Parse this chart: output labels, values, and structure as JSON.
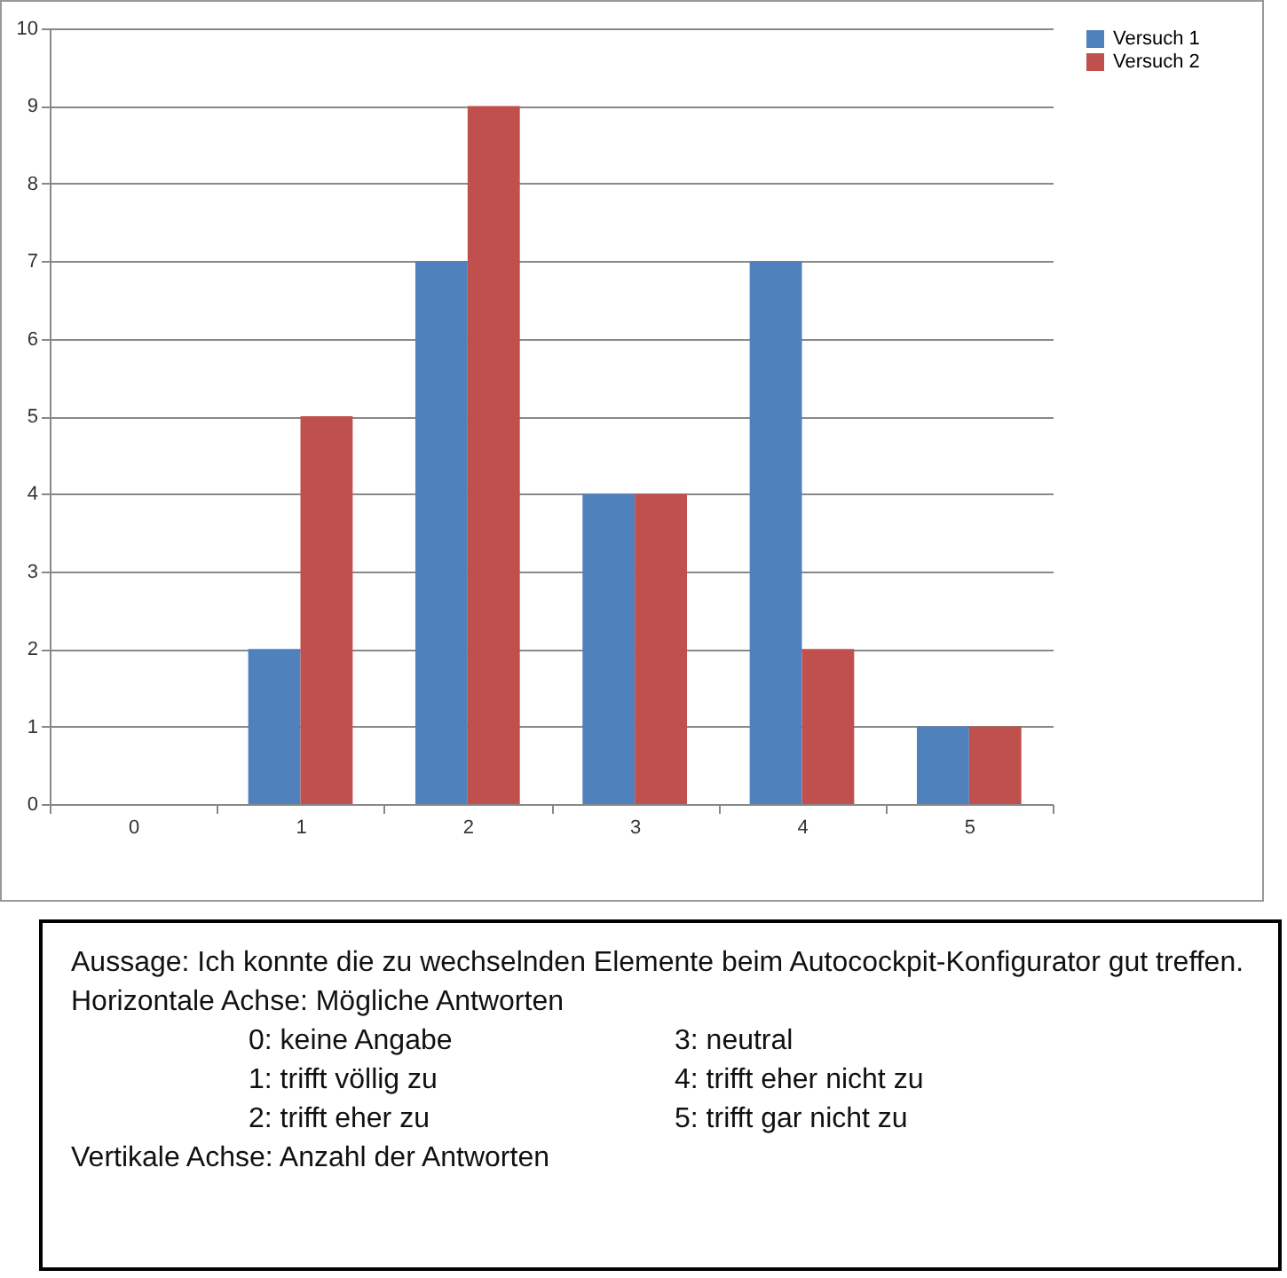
{
  "chart_data": {
    "type": "bar",
    "categories": [
      "0",
      "1",
      "2",
      "3",
      "4",
      "5"
    ],
    "series": [
      {
        "name": "Versuch 1",
        "color": "#4f81bd",
        "values": [
          0,
          2,
          7,
          4,
          7,
          1
        ]
      },
      {
        "name": "Versuch 2",
        "color": "#c0504d",
        "values": [
          0,
          5,
          9,
          4,
          2,
          1
        ]
      }
    ],
    "ylim": [
      0,
      10
    ],
    "yticks": [
      0,
      1,
      2,
      3,
      4,
      5,
      6,
      7,
      8,
      9,
      10
    ],
    "grid": "y",
    "legend": "right",
    "annotations": [
      "Aussage: Ich konnte die zu wechselnden Elemente beim Autocockpit-Konfigurator gut treffen.",
      "Horizontale Achse: Mögliche Antworten",
      "0: keine Angabe",
      "3: neutral",
      "1: trifft völlig zu",
      "4: trifft eher nicht zu",
      "2: trifft eher zu",
      "5: trifft gar nicht zu",
      "Vertikale Achse: Anzahl der Antworten"
    ]
  }
}
